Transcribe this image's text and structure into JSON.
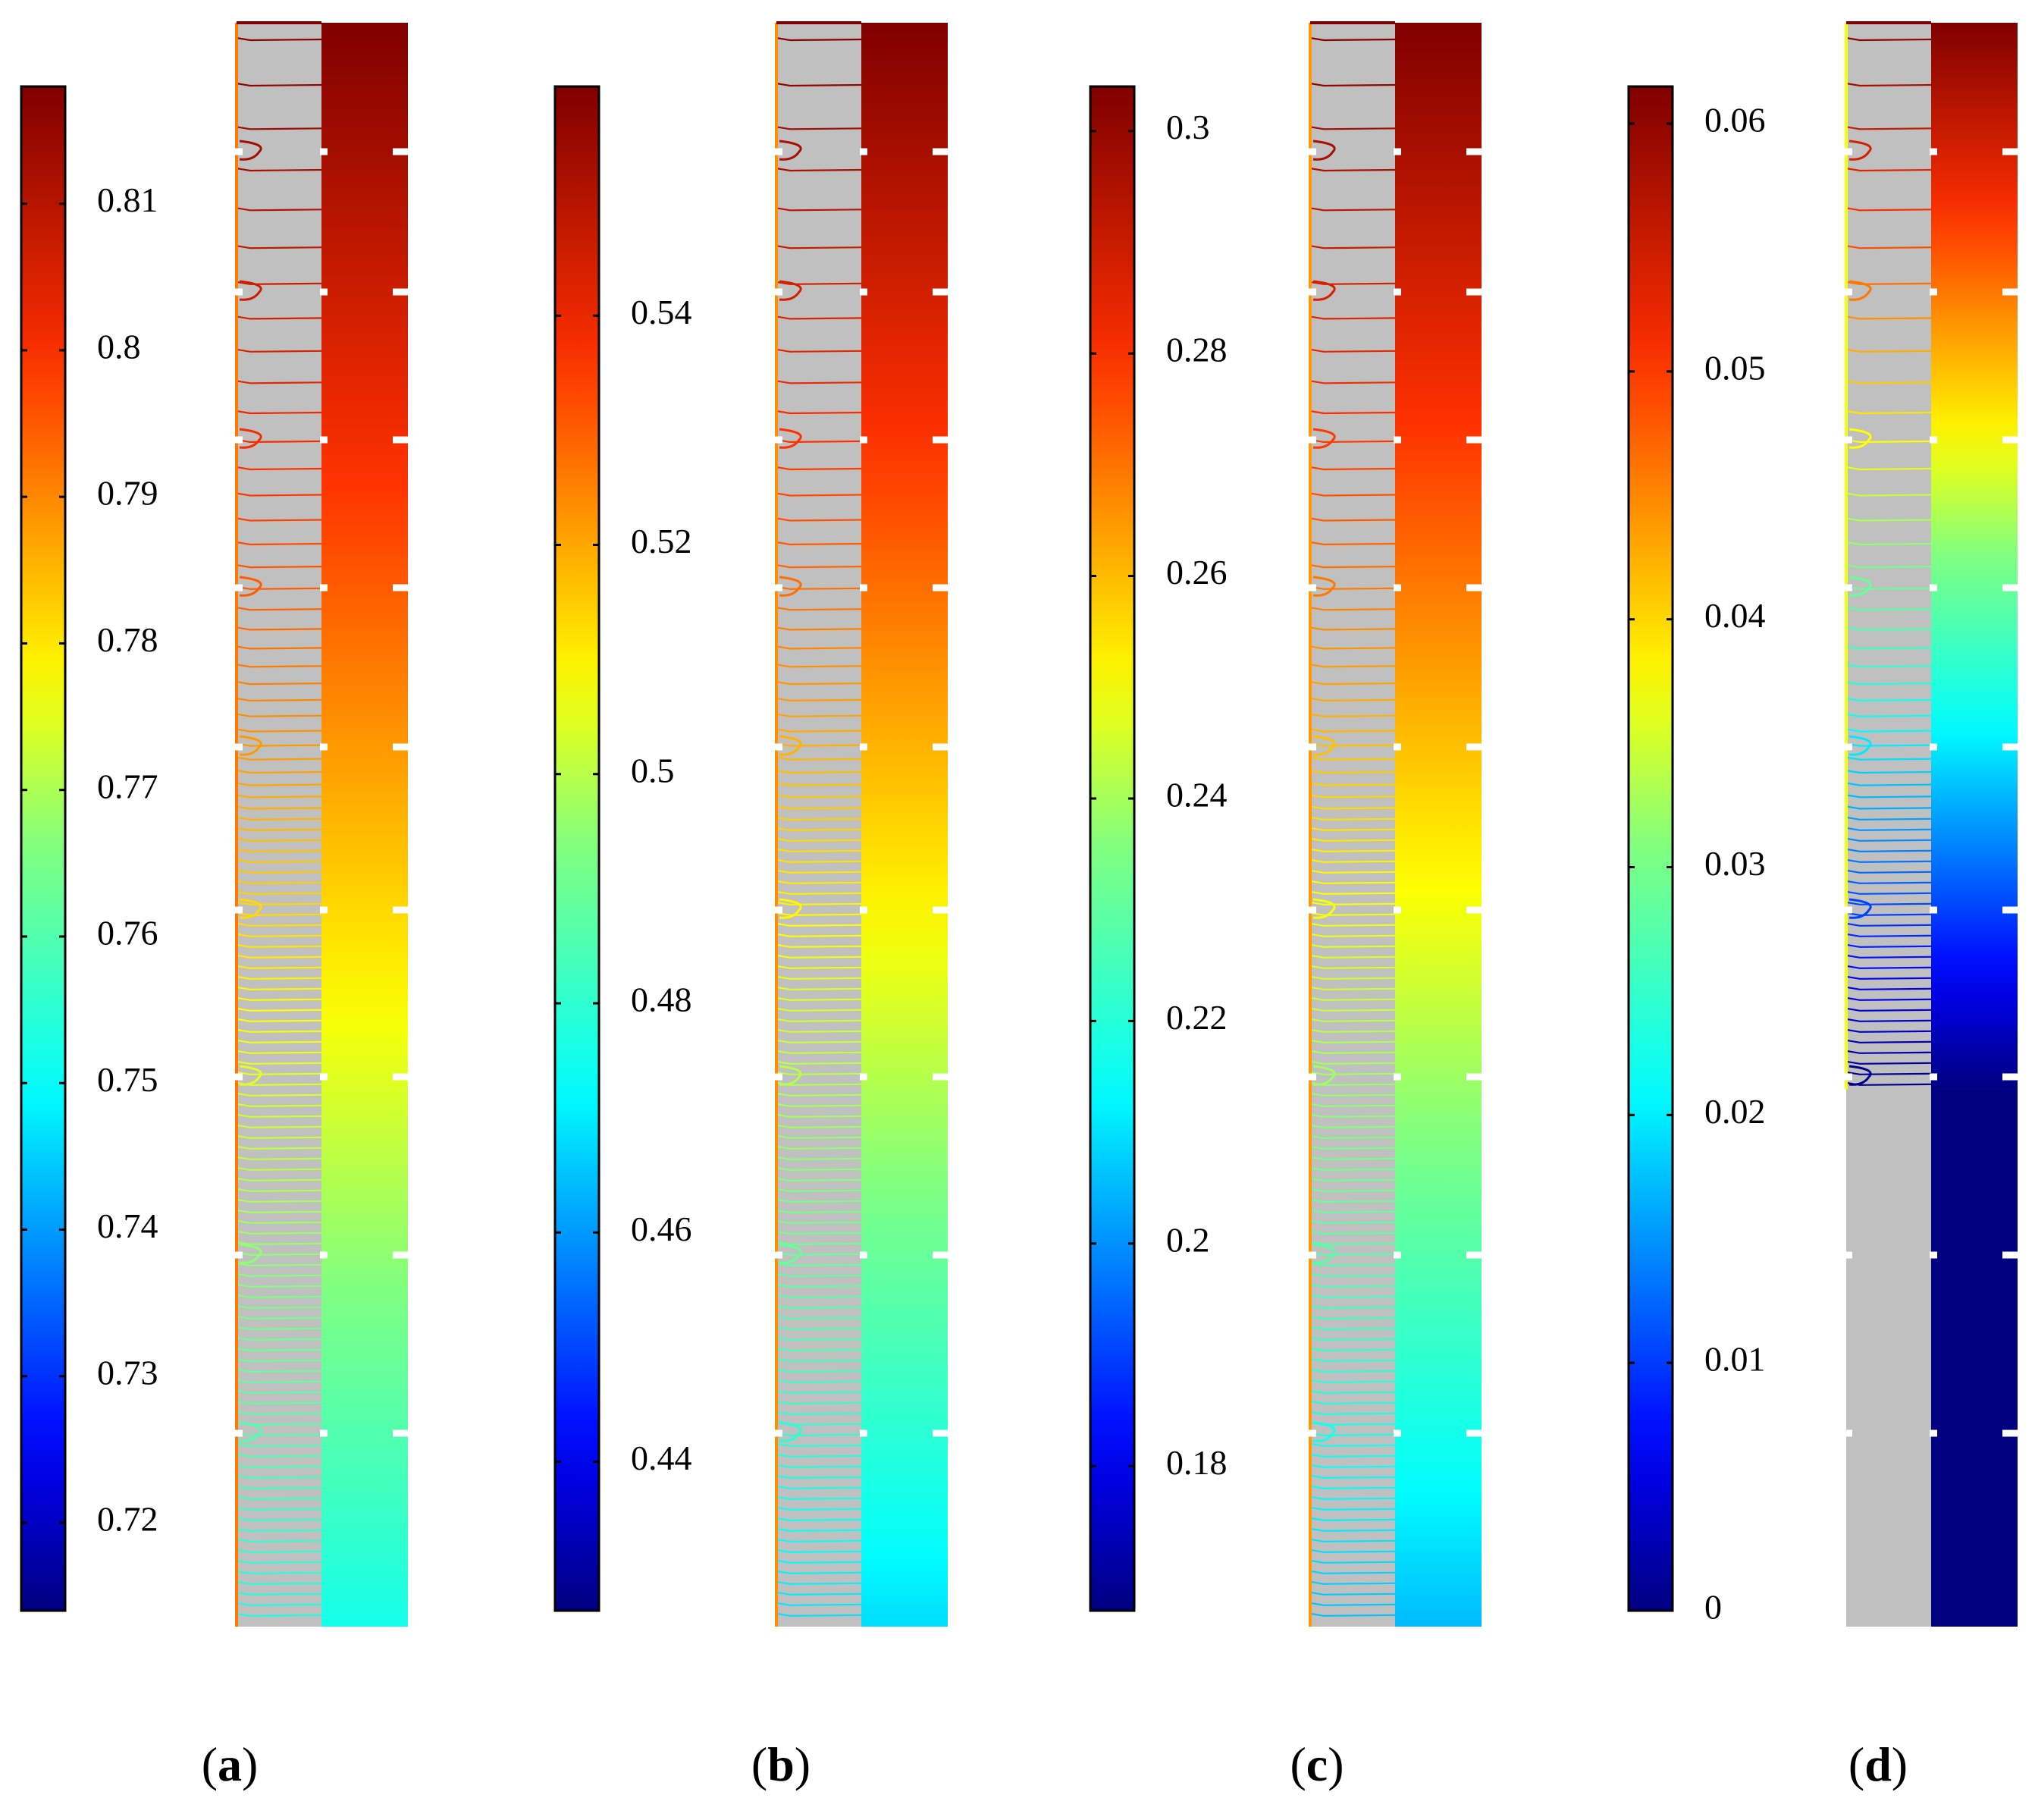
{
  "figure": {
    "colormap": "jet",
    "colors": {
      "gray_region": "#c0c0c0",
      "axis_line": "#000000",
      "slot_mark": "#ffffff",
      "background": "#ffffff"
    },
    "panels": [
      {
        "label_open": "(",
        "label_letter": "a",
        "label_close": ")",
        "colorbar": {
          "range": [
            0.714,
            0.818
          ],
          "ticks": [
            "0.72",
            "0.73",
            "0.74",
            "0.75",
            "0.76",
            "0.77",
            "0.78",
            "0.79",
            "0.8",
            "0.81"
          ]
        },
        "field_top_value": 0.818,
        "field_bottom_value": 0.752,
        "active_bottom_fraction": 0
      },
      {
        "label_open": "(",
        "label_letter": "b",
        "label_close": ")",
        "colorbar": {
          "range": [
            0.427,
            0.56
          ],
          "ticks": [
            "0.44",
            "0.46",
            "0.48",
            "0.5",
            "0.52",
            "0.54"
          ]
        },
        "field_top_value": 0.56,
        "field_bottom_value": 0.468,
        "active_bottom_fraction": 0
      },
      {
        "label_open": "(",
        "label_letter": "c",
        "label_close": ")",
        "colorbar": {
          "range": [
            0.167,
            0.304
          ],
          "ticks": [
            "0.18",
            "0.2",
            "0.22",
            "0.24",
            "0.26",
            "0.28",
            "0.3"
          ]
        },
        "field_top_value": 0.304,
        "field_bottom_value": 0.205,
        "active_bottom_fraction": 0
      },
      {
        "label_open": "(",
        "label_letter": "d",
        "label_close": ")",
        "colorbar": {
          "range": [
            0,
            0.0615
          ],
          "ticks": [
            "0",
            "0.01",
            "0.02",
            "0.03",
            "0.04",
            "0.05",
            "0.06"
          ]
        },
        "field_top_value": 0.0615,
        "field_bottom_value": 0.0,
        "active_bottom_fraction": 0.665
      }
    ]
  }
}
